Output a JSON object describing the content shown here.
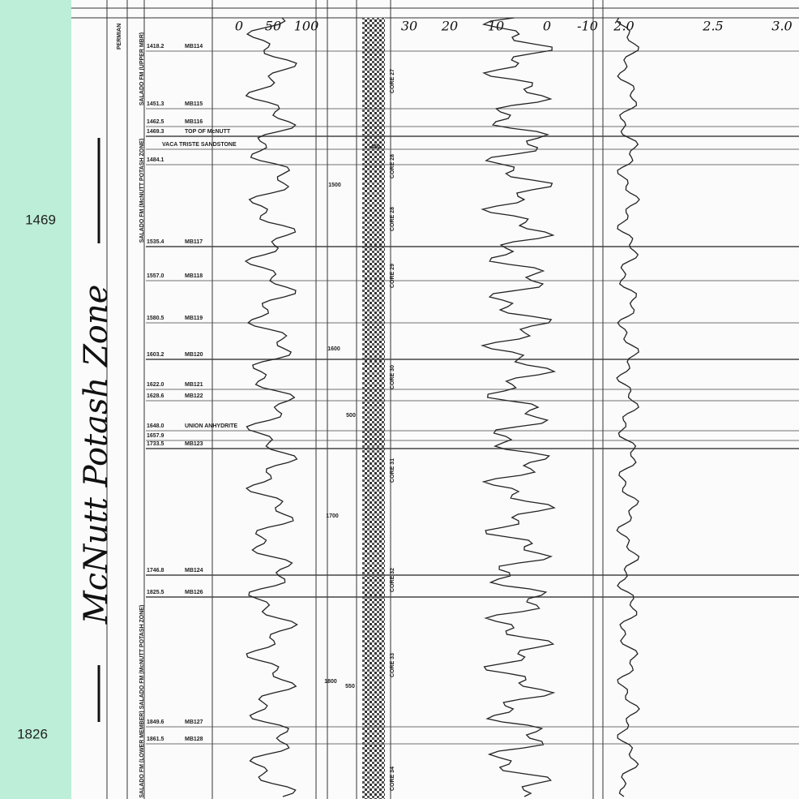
{
  "depth_labels": [
    "1469",
    "1826"
  ],
  "zone_annotation": "McNutt Potash Zone",
  "scales": {
    "gamma": [
      "0",
      "50",
      "100"
    ],
    "neutron": [
      "30",
      "20",
      "10",
      "0",
      "-10"
    ],
    "density": [
      "2.0",
      "2.5",
      "3.0"
    ]
  },
  "formations": [
    "PERMIAN",
    "SALADO FM (UPPER MBR)",
    "SALADO FM (McNUTT POTASH ZONE)",
    "SALADO FM (McNUTT POTASH ZONE)",
    "SALADO FM (LOWER MEMBER)"
  ],
  "markers": [
    {
      "depth": "1418.2",
      "name": "MB114"
    },
    {
      "depth": "1451.3",
      "name": "MB115"
    },
    {
      "depth": "1462.5",
      "name": "MB116"
    },
    {
      "depth": "1469.3",
      "name": "TOP OF McNUTT"
    },
    {
      "depth": "",
      "name": "VACA TRISTE SANDSTONE"
    },
    {
      "depth": "1484.1",
      "name": ""
    },
    {
      "depth": "1535.4",
      "name": "MB117"
    },
    {
      "depth": "1557.0",
      "name": "MB118"
    },
    {
      "depth": "1580.5",
      "name": "MB119"
    },
    {
      "depth": "1603.2",
      "name": "MB120"
    },
    {
      "depth": "1622.0",
      "name": "MB121"
    },
    {
      "depth": "1628.6",
      "name": "MB122"
    },
    {
      "depth": "1648.0",
      "name": "UNION ANHYDRITE"
    },
    {
      "depth": "1657.9",
      "name": ""
    },
    {
      "depth": "1733.5",
      "name": "MB123"
    },
    {
      "depth": "1746.8",
      "name": "MB124"
    },
    {
      "depth": "1825.5",
      "name": "MB126"
    },
    {
      "depth": "1849.6",
      "name": "MB127"
    },
    {
      "depth": "1861.5",
      "name": "MB128"
    }
  ],
  "cores": [
    "CORE 27",
    "CORE 28",
    "CORE 28",
    "CORE 29",
    "CORE 30",
    "CORE 31",
    "CORE 32",
    "CORE 33",
    "CORE 34"
  ],
  "depth_ticks": [
    "1500",
    "1600",
    "1700",
    "1800"
  ],
  "scale_marks": [
    "-450",
    "500",
    "550"
  ]
}
